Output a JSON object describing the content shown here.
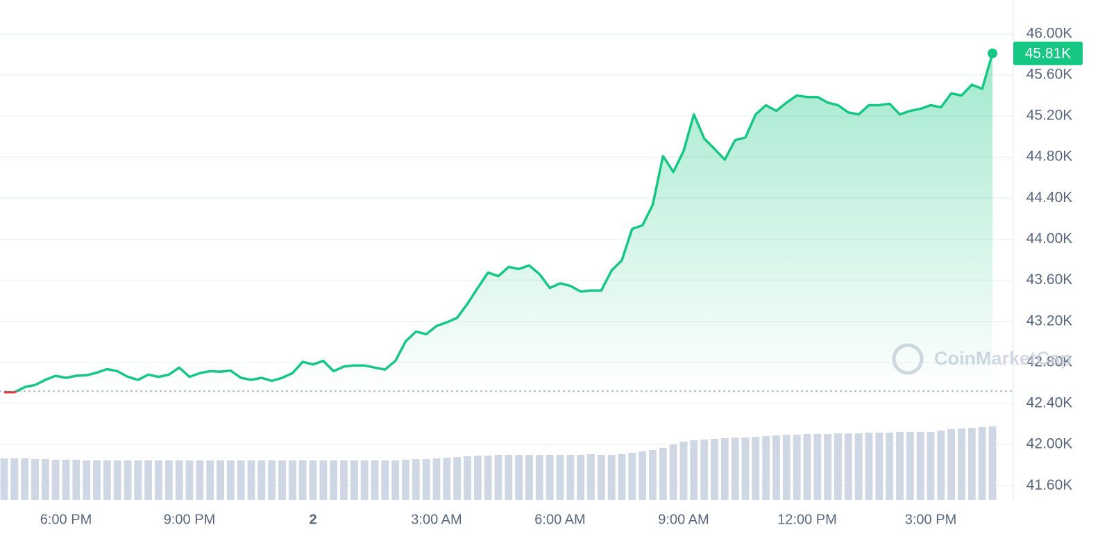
{
  "chart_data": {
    "type": "line",
    "categories": [
      null,
      null,
      null,
      null,
      null,
      null,
      "6:00 PM",
      null,
      null,
      null,
      null,
      null,
      null,
      null,
      null,
      null,
      null,
      null,
      "9:00 PM",
      null,
      null,
      null,
      null,
      null,
      null,
      null,
      null,
      null,
      null,
      null,
      "2",
      null,
      null,
      null,
      null,
      null,
      null,
      null,
      null,
      null,
      null,
      null,
      "3:00 AM",
      null,
      null,
      null,
      null,
      null,
      null,
      null,
      null,
      null,
      null,
      null,
      "6:00 AM",
      null,
      null,
      null,
      null,
      null,
      null,
      null,
      null,
      null,
      null,
      null,
      "9:00 AM",
      null,
      null,
      null,
      null,
      null,
      null,
      null,
      null,
      null,
      null,
      null,
      "12:00 PM",
      null,
      null,
      null,
      null,
      null,
      null,
      null,
      null,
      null,
      null,
      null,
      "3:00 PM",
      null,
      null,
      null,
      null,
      null,
      null
    ],
    "values": [
      42510,
      42510,
      42560,
      42580,
      42630,
      42670,
      42650,
      42670,
      42675,
      42700,
      42735,
      42715,
      42660,
      42630,
      42680,
      42660,
      42680,
      42750,
      42660,
      42695,
      42715,
      42710,
      42720,
      42650,
      42630,
      42650,
      42620,
      42650,
      42695,
      42805,
      42780,
      42815,
      42715,
      42760,
      42770,
      42770,
      42750,
      42730,
      42815,
      43005,
      43100,
      43075,
      43155,
      43190,
      43235,
      43370,
      43525,
      43675,
      43640,
      43730,
      43710,
      43745,
      43660,
      43525,
      43570,
      43545,
      43490,
      43500,
      43500,
      43695,
      43795,
      44100,
      44135,
      44335,
      44810,
      44655,
      44860,
      45215,
      44980,
      44880,
      44775,
      44965,
      44990,
      45215,
      45305,
      45250,
      45330,
      45400,
      45385,
      45385,
      45330,
      45305,
      45235,
      45215,
      45305,
      45305,
      45320,
      45215,
      45250,
      45270,
      45305,
      45285,
      45420,
      45400,
      45505,
      45465,
      45810
    ],
    "color": "#16c784",
    "down_color": "#ea3943",
    "baseline": 42520,
    "last_label": "45.81K",
    "volume": {
      "color": "#cfd6e4",
      "values": [
        60,
        60,
        60,
        59,
        59,
        58,
        58,
        58,
        57,
        57,
        57,
        57,
        57,
        57,
        57,
        57,
        57,
        57,
        57,
        57,
        57,
        57,
        57,
        57,
        57,
        57,
        57,
        57,
        57,
        57,
        57,
        57,
        57,
        57,
        57,
        57,
        57,
        57,
        57,
        58,
        59,
        59,
        60,
        61,
        62,
        63,
        64,
        64,
        65,
        65,
        65,
        65,
        65,
        65,
        65,
        65,
        65,
        66,
        65,
        65,
        66,
        68,
        70,
        72,
        75,
        80,
        84,
        86,
        87,
        88,
        89,
        90,
        90,
        91,
        92,
        93,
        94,
        94,
        95,
        95,
        95,
        96,
        96,
        96,
        97,
        97,
        97,
        98,
        98,
        98,
        98,
        100,
        102,
        103,
        104,
        105,
        106
      ]
    },
    "ylim": [
      41460,
      46330
    ],
    "yticks": [
      {
        "value": 46000,
        "label": "46.00K"
      },
      {
        "value": 45600,
        "label": "45.60K"
      },
      {
        "value": 45200,
        "label": "45.20K"
      },
      {
        "value": 44800,
        "label": "44.80K"
      },
      {
        "value": 44400,
        "label": "44.40K"
      },
      {
        "value": 44000,
        "label": "44.00K"
      },
      {
        "value": 43600,
        "label": "43.60K"
      },
      {
        "value": 43200,
        "label": "43.20K"
      },
      {
        "value": 42800,
        "label": "42.80K"
      },
      {
        "value": 42400,
        "label": "42.40K"
      },
      {
        "value": 42000,
        "label": "42.00K"
      },
      {
        "value": 41600,
        "label": "41.60K"
      }
    ],
    "grid": true,
    "watermark": "CoinMarketCap"
  }
}
